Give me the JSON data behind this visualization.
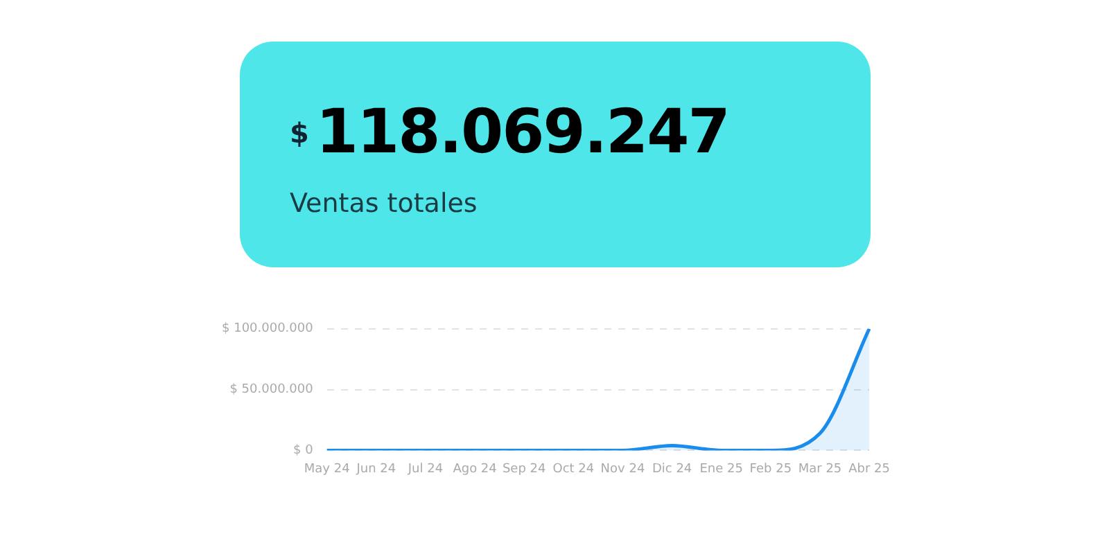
{
  "chart_data": [
    {
      "type": "other",
      "title": "118.069.247",
      "subtitle": "Ventas totales",
      "annotations": [
        "$"
      ],
      "color": "#4fe6e9"
    },
    {
      "type": "area",
      "categories": [
        "May 24",
        "Jun 24",
        "Jul 24",
        "Ago 24",
        "Sep 24",
        "Oct 24",
        "Nov 24",
        "Dic 24",
        "Ene 25",
        "Feb 25",
        "Mar 25",
        "Abr 25"
      ],
      "series": [
        {
          "color": "#1a8cec",
          "values": [
            0,
            0,
            0,
            0,
            0,
            0,
            0,
            4000000,
            0,
            0,
            14000000,
            100000000
          ]
        }
      ],
      "ylim": [
        0,
        100000000
      ],
      "yticks": [
        {
          "value": 0,
          "label": "$ 0"
        },
        {
          "value": 50000000,
          "label": "$ 50.000.000"
        },
        {
          "value": 100000000,
          "label": "$ 100.000.000"
        }
      ],
      "grid": "y",
      "line_style": "solid",
      "marker": "none",
      "legend": false
    }
  ]
}
